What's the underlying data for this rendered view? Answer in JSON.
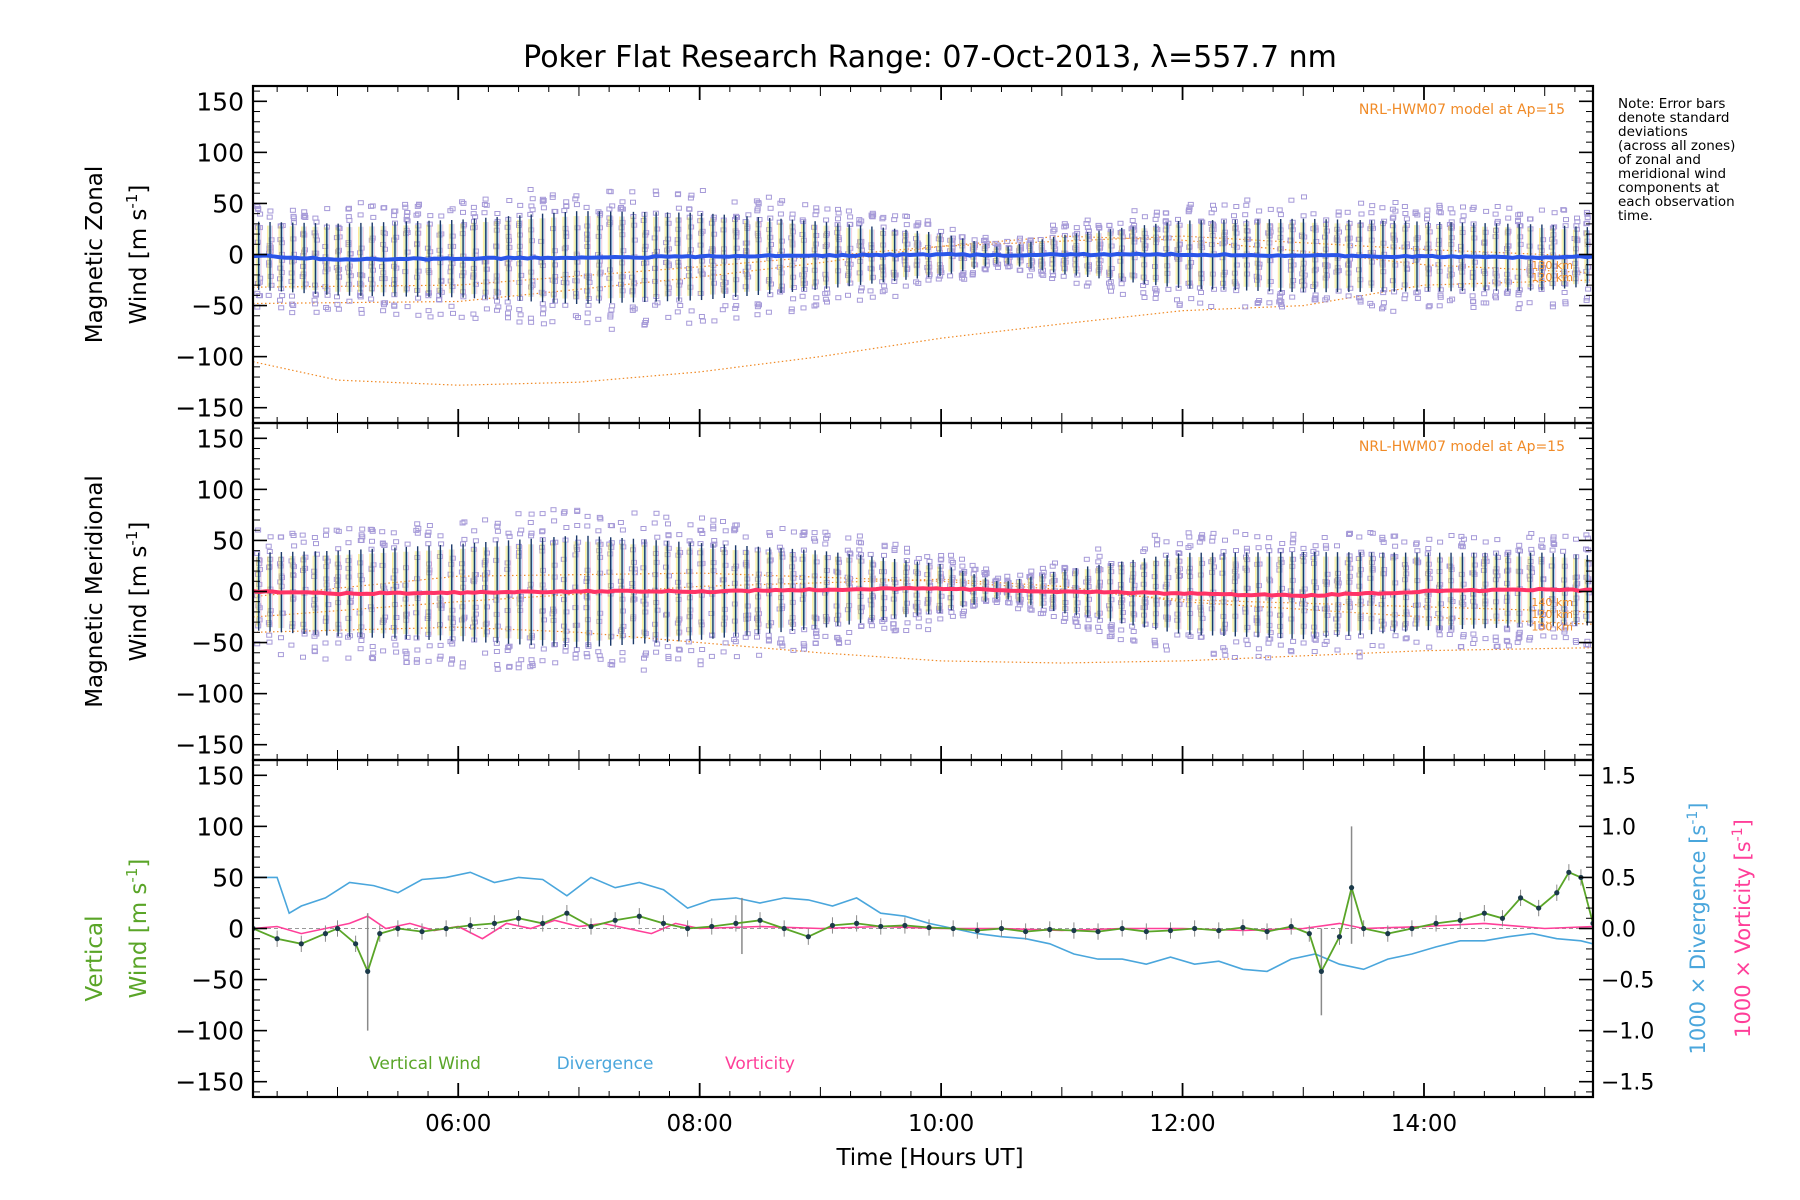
{
  "chart_data": {
    "title": "Poker Flat Research Range: 07-Oct-2013, λ=557.7 nm",
    "xlabel": "Time [Hours UT]",
    "x_range_hours": [
      4.3,
      15.4
    ],
    "x_ticks": [
      {
        "value": 6,
        "label": "06:00"
      },
      {
        "value": 8,
        "label": "08:00"
      },
      {
        "value": 10,
        "label": "10:00"
      },
      {
        "value": 12,
        "label": "12:00"
      },
      {
        "value": 14,
        "label": "14:00"
      }
    ],
    "note_lines": [
      "Note: Error bars",
      "denote standard",
      "deviations",
      "(across all zones)",
      "of zonal and",
      "meridional wind",
      "components at",
      "each observation",
      "time."
    ],
    "colors": {
      "zonal_mean": "#2a55e8",
      "meridional_mean": "#ff3366",
      "vertical": "#5aa528",
      "divergence": "#4aa6dc",
      "vorticity": "#ff3f99",
      "scatter": "#a69ad8",
      "model": "#f08a26",
      "error_bar": "#1c3a6a",
      "vertical_error": "#8a8a8a"
    },
    "panels": [
      {
        "id": "zonal",
        "type": "scatter",
        "ylabel_line1": "Magnetic Zonal",
        "ylabel_line2": "Wind [m s",
        "ylabel_sup": "-1",
        "ylabel_close": "]",
        "ylim": [
          -165,
          165
        ],
        "yticks": [
          -150,
          -100,
          -50,
          0,
          50,
          100,
          150
        ],
        "yticklabels": [
          "−150",
          "−100",
          "−50",
          "0",
          "50",
          "100",
          "150"
        ],
        "model_label": "NRL-HWM07 model at Ap=15",
        "model_alt_labels": [
          "130 km",
          "120 km"
        ],
        "mean_series": {
          "x": [
            4.3,
            5.0,
            6.0,
            7.0,
            8.0,
            9.0,
            10.0,
            10.6,
            11.0,
            12.0,
            13.0,
            14.0,
            15.0,
            15.4
          ],
          "y": [
            -1,
            -5,
            -4,
            -3,
            -2,
            -1,
            0,
            -1,
            0,
            0,
            -1,
            -2,
            -3,
            -2
          ]
        },
        "spread": {
          "x": [
            4.3,
            6.0,
            7.0,
            8.0,
            9.0,
            10.0,
            10.5,
            11.0,
            12.0,
            13.0,
            14.0,
            15.0,
            15.4
          ],
          "y": [
            35,
            40,
            48,
            45,
            35,
            22,
            8,
            20,
            35,
            38,
            36,
            34,
            30
          ]
        },
        "models": [
          {
            "name": "model-high",
            "x": [
              4.3,
              6.0,
              8.0,
              10.0,
              12.0,
              14.0,
              15.4
            ],
            "y": [
              -32,
              -30,
              -12,
              8,
              18,
              5,
              -2
            ]
          },
          {
            "name": "model-mid",
            "x": [
              4.3,
              6.0,
              8.0,
              9.0,
              10.0,
              11.0,
              12.0,
              13.0,
              14.0,
              15.4
            ],
            "y": [
              -48,
              -46,
              -22,
              -8,
              8,
              18,
              14,
              3,
              -10,
              -18
            ]
          },
          {
            "name": "model-low",
            "x": [
              4.3,
              5.0,
              6.0,
              7.0,
              8.0,
              9.0,
              10.0,
              11.0,
              12.0,
              13.0,
              14.0,
              15.4
            ],
            "y": [
              -105,
              -123,
              -128,
              -125,
              -115,
              -100,
              -82,
              -68,
              -55,
              -50,
              -30,
              -25
            ]
          }
        ]
      },
      {
        "id": "meridional",
        "type": "scatter",
        "ylabel_line1": "Magnetic Meridional",
        "ylabel_line2": "Wind [m s",
        "ylabel_sup": "-1",
        "ylabel_close": "]",
        "ylim": [
          -165,
          165
        ],
        "yticks": [
          -150,
          -100,
          -50,
          0,
          50,
          100,
          150
        ],
        "yticklabels": [
          "−150",
          "−100",
          "−50",
          "0",
          "50",
          "100",
          "150"
        ],
        "model_label": "NRL-HWM07 model at Ap=15",
        "model_alt_labels": [
          "140 km",
          "120 km",
          "130 km"
        ],
        "mean_series": {
          "x": [
            4.3,
            5.0,
            6.0,
            7.0,
            8.0,
            9.0,
            10.0,
            10.6,
            11.0,
            12.0,
            13.0,
            14.0,
            15.0,
            15.4
          ],
          "y": [
            0,
            -2,
            -1,
            0,
            0,
            2,
            3,
            1,
            0,
            -2,
            -4,
            0,
            2,
            1
          ]
        },
        "spread": {
          "x": [
            4.3,
            6.0,
            7.0,
            8.0,
            9.0,
            10.0,
            10.5,
            11.0,
            12.0,
            13.0,
            14.0,
            15.0,
            15.4
          ],
          "y": [
            40,
            50,
            58,
            50,
            40,
            25,
            8,
            22,
            42,
            45,
            40,
            38,
            36
          ]
        },
        "models": [
          {
            "name": "model-high",
            "x": [
              4.3,
              6.0,
              8.0,
              10.0,
              11.0,
              12.0,
              14.0,
              15.4
            ],
            "y": [
              -5,
              15,
              18,
              10,
              2,
              -8,
              -15,
              -20
            ]
          },
          {
            "name": "model-mid",
            "x": [
              4.3,
              6.0,
              8.0,
              10.0,
              11.0,
              12.0,
              14.0,
              15.4
            ],
            "y": [
              -25,
              -10,
              5,
              12,
              5,
              -10,
              -25,
              -32
            ]
          },
          {
            "name": "model-low",
            "x": [
              4.3,
              6.0,
              7.0,
              8.0,
              9.0,
              10.0,
              11.0,
              12.0,
              13.0,
              14.0,
              15.4
            ],
            "y": [
              -40,
              -35,
              -40,
              -50,
              -60,
              -68,
              -70,
              -68,
              -63,
              -58,
              -55
            ]
          }
        ]
      },
      {
        "id": "vertical",
        "type": "line",
        "ylabel_vertical_a": "Vertical",
        "ylabel_vertical_b": "Wind [m s",
        "ylabel_sup": "-1",
        "ylabel_close": "]",
        "ylim": [
          -165,
          165
        ],
        "yticks": [
          -150,
          -100,
          -50,
          0,
          50,
          100,
          150
        ],
        "yticklabels": [
          "−150",
          "−100",
          "−50",
          "0",
          "50",
          "100",
          "150"
        ],
        "right_axis": {
          "ylim": [
            -1.65,
            1.65
          ],
          "yticks": [
            -1.5,
            -1.0,
            -0.5,
            0.0,
            0.5,
            1.0,
            1.5
          ],
          "yticklabels": [
            "−1.5",
            "−1.0",
            "−0.5",
            "0.0",
            "0.5",
            "1.0",
            "1.5"
          ],
          "label_divergence": "1000 × Divergence [s",
          "label_vorticity": "1000 × Vorticity [s",
          "label_sup": "-1",
          "label_close": "]"
        },
        "legend": [
          "Vertical Wind",
          "Divergence",
          "Vorticity"
        ],
        "vertical_wind": {
          "x": [
            4.3,
            4.5,
            4.7,
            4.9,
            5.0,
            5.15,
            5.25,
            5.35,
            5.5,
            5.7,
            5.9,
            6.1,
            6.3,
            6.5,
            6.7,
            6.9,
            7.1,
            7.3,
            7.5,
            7.7,
            7.9,
            8.1,
            8.3,
            8.5,
            8.7,
            8.9,
            9.1,
            9.3,
            9.5,
            9.7,
            9.9,
            10.1,
            10.3,
            10.5,
            10.7,
            10.9,
            11.1,
            11.3,
            11.5,
            11.7,
            11.9,
            12.1,
            12.3,
            12.5,
            12.7,
            12.9,
            13.05,
            13.15,
            13.3,
            13.4,
            13.5,
            13.7,
            13.9,
            14.1,
            14.3,
            14.5,
            14.65,
            14.8,
            14.95,
            15.1,
            15.2,
            15.3,
            15.4
          ],
          "y": [
            0,
            -10,
            -15,
            -5,
            0,
            -15,
            -42,
            -5,
            0,
            -3,
            0,
            3,
            5,
            10,
            5,
            15,
            2,
            8,
            12,
            5,
            0,
            2,
            5,
            8,
            0,
            -8,
            3,
            5,
            2,
            3,
            1,
            0,
            -2,
            0,
            -3,
            -1,
            -2,
            -3,
            0,
            -3,
            -2,
            0,
            -2,
            1,
            -3,
            2,
            -5,
            -42,
            -8,
            40,
            0,
            -5,
            0,
            5,
            8,
            15,
            10,
            30,
            20,
            35,
            55,
            50,
            5
          ]
        },
        "vertical_error_spikes": [
          {
            "x": 5.25,
            "low": -100,
            "high": 15
          },
          {
            "x": 8.35,
            "low": -25,
            "high": 30
          },
          {
            "x": 13.15,
            "low": -85,
            "high": 0
          },
          {
            "x": 13.4,
            "low": -15,
            "high": 100
          }
        ],
        "divergence": {
          "x": [
            4.3,
            4.5,
            4.6,
            4.7,
            4.9,
            5.1,
            5.3,
            5.5,
            5.7,
            5.9,
            6.1,
            6.3,
            6.5,
            6.7,
            6.9,
            7.1,
            7.3,
            7.5,
            7.7,
            7.9,
            8.1,
            8.3,
            8.5,
            8.7,
            8.9,
            9.1,
            9.3,
            9.5,
            9.7,
            9.9,
            10.1,
            10.3,
            10.5,
            10.7,
            10.9,
            11.1,
            11.3,
            11.5,
            11.7,
            11.9,
            12.1,
            12.3,
            12.5,
            12.7,
            12.9,
            13.1,
            13.3,
            13.5,
            13.7,
            13.9,
            14.1,
            14.3,
            14.5,
            14.7,
            14.9,
            15.1,
            15.3,
            15.4
          ],
          "y": [
            0.5,
            0.5,
            0.15,
            0.22,
            0.3,
            0.45,
            0.42,
            0.35,
            0.48,
            0.5,
            0.55,
            0.45,
            0.5,
            0.48,
            0.32,
            0.5,
            0.4,
            0.45,
            0.38,
            0.2,
            0.28,
            0.3,
            0.25,
            0.3,
            0.28,
            0.22,
            0.3,
            0.15,
            0.12,
            0.05,
            0.0,
            -0.05,
            -0.08,
            -0.1,
            -0.15,
            -0.25,
            -0.3,
            -0.3,
            -0.35,
            -0.28,
            -0.35,
            -0.32,
            -0.4,
            -0.42,
            -0.3,
            -0.25,
            -0.35,
            -0.4,
            -0.3,
            -0.25,
            -0.18,
            -0.12,
            -0.12,
            -0.08,
            -0.05,
            -0.1,
            -0.12,
            -0.15
          ]
        },
        "vorticity": {
          "x": [
            4.3,
            4.5,
            4.7,
            4.9,
            5.1,
            5.25,
            5.4,
            5.6,
            5.8,
            6.0,
            6.2,
            6.4,
            6.6,
            6.8,
            7.0,
            7.2,
            7.4,
            7.6,
            7.8,
            8.0,
            8.5,
            9.0,
            9.5,
            10.0,
            10.5,
            11.0,
            11.5,
            12.0,
            12.5,
            13.0,
            13.3,
            13.5,
            14.0,
            14.5,
            15.0,
            15.4
          ],
          "y": [
            0.0,
            0.02,
            -0.05,
            0.0,
            0.05,
            0.12,
            0.0,
            0.05,
            -0.02,
            0.02,
            -0.1,
            0.05,
            0.0,
            0.08,
            0.02,
            0.05,
            0.0,
            -0.05,
            0.05,
            0.0,
            0.02,
            0.0,
            0.02,
            0.0,
            0.0,
            -0.02,
            0.0,
            0.0,
            -0.02,
            0.0,
            0.05,
            0.0,
            0.02,
            0.05,
            0.0,
            0.02
          ]
        }
      }
    ]
  }
}
